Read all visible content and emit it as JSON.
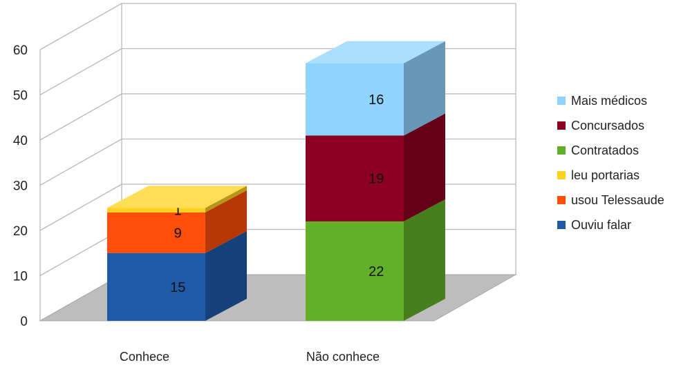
{
  "chart_data": {
    "type": "bar",
    "stacked": true,
    "three_d": true,
    "categories": [
      "Conhece",
      "Não conhece"
    ],
    "yticks": [
      0,
      10,
      20,
      30,
      40,
      50,
      60
    ],
    "ylim": [
      0,
      60
    ],
    "grid": true,
    "legend_position": "right",
    "series": [
      {
        "name": "Ouviu falar",
        "values": [
          15,
          0
        ],
        "color": "#1f5aa6"
      },
      {
        "name": "usou Telessaude",
        "values": [
          9,
          0
        ],
        "color": "#ff4d0a"
      },
      {
        "name": "leu portarias",
        "values": [
          1,
          0
        ],
        "color": "#ffd21f"
      },
      {
        "name": "Contratados",
        "values": [
          0,
          22
        ],
        "color": "#62b02a"
      },
      {
        "name": "Concursados",
        "values": [
          0,
          19
        ],
        "color": "#8b0022"
      },
      {
        "name": "Mais médicos",
        "values": [
          0,
          16
        ],
        "color": "#8fd3ff"
      }
    ],
    "legend_order": [
      "Mais médicos",
      "Concursados",
      "Contratados",
      "leu portarias",
      "usou Telessaude",
      "Ouviu falar"
    ]
  }
}
